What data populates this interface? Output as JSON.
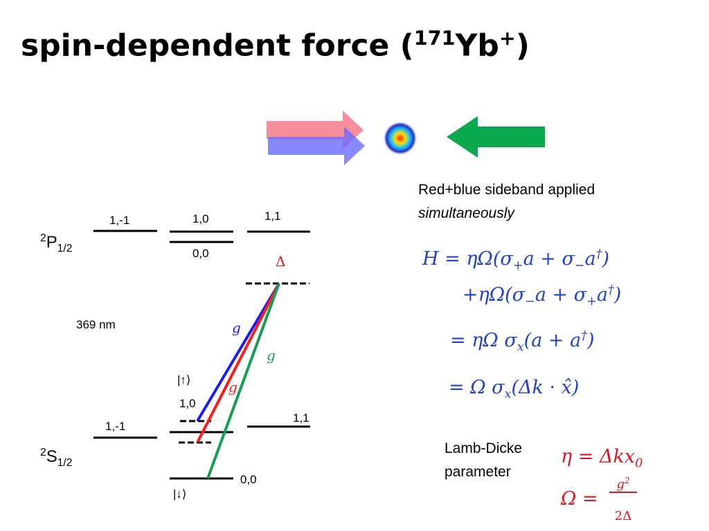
{
  "title": [
    {
      "text": "spin-dependent force ("
    },
    {
      "sup": "171"
    },
    {
      "text": "Yb"
    },
    {
      "sup": "+"
    },
    {
      "text": ")"
    }
  ],
  "levels": {
    "p_label": [
      {
        "sup": "2"
      },
      {
        "text": "P"
      },
      {
        "sub": "1/2"
      }
    ],
    "s_label": [
      {
        "sup": "2"
      },
      {
        "text": "S"
      },
      {
        "sub": "1/2"
      }
    ],
    "p_states": [
      "1,-1",
      "1,0",
      "0,0",
      "1,1"
    ],
    "s_states": [
      "1,-1",
      "1,0",
      "1,1",
      "0,0"
    ],
    "detuning": "Δ",
    "wavelength": "369 nm",
    "couplings": [
      "g",
      "g",
      "g"
    ],
    "up_state": "|↑⟩",
    "down_state": "|↓⟩"
  },
  "note": [
    "Red+blue sideband applied",
    "simultaneously"
  ],
  "equations": [
    [
      {
        "text": "H = ηΩ(σ"
      },
      {
        "sub": "+"
      },
      {
        "text": "a + σ"
      },
      {
        "sub": "−"
      },
      {
        "text": "a"
      },
      {
        "sup": "†"
      },
      {
        "text": ")"
      }
    ],
    [
      {
        "text": "+ηΩ(σ"
      },
      {
        "sub": "−"
      },
      {
        "text": "a + σ"
      },
      {
        "sub": "+"
      },
      {
        "text": "a"
      },
      {
        "sup": "†"
      },
      {
        "text": ")"
      }
    ],
    [
      {
        "text": "= ηΩ σ"
      },
      {
        "sub": "x"
      },
      {
        "text": "(a + a"
      },
      {
        "sup": "†"
      },
      {
        "text": ")"
      }
    ],
    [
      {
        "text": "= Ω σ"
      },
      {
        "sub": "x"
      },
      {
        "text": "(Δk · x̂)"
      }
    ]
  ],
  "lamb_dicke": {
    "label": [
      "Lamb-Dicke",
      "parameter"
    ],
    "eta": [
      {
        "text": "η = Δkx"
      },
      {
        "sub": "0"
      }
    ],
    "omega_lhs": "Ω =",
    "omega_numerator": [
      {
        "text": "g"
      },
      {
        "sup": "2"
      }
    ],
    "omega_denominator": "2Δ"
  }
}
